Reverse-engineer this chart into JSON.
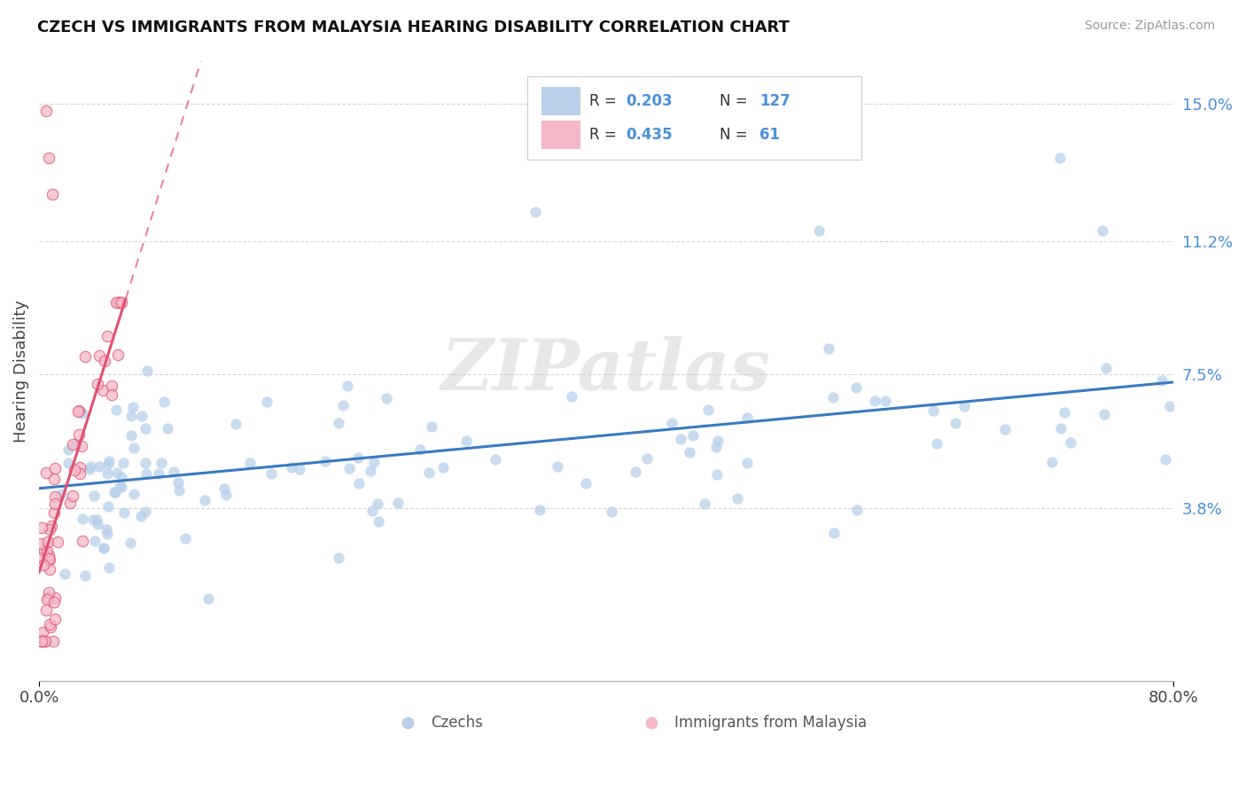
{
  "title": "CZECH VS IMMIGRANTS FROM MALAYSIA HEARING DISABILITY CORRELATION CHART",
  "source": "Source: ZipAtlas.com",
  "ylabel": "Hearing Disability",
  "y_ticks": [
    0.038,
    0.075,
    0.112,
    0.15
  ],
  "y_tick_labels": [
    "3.8%",
    "7.5%",
    "11.2%",
    "15.0%"
  ],
  "x_min": 0.0,
  "x_max": 0.8,
  "y_min": -0.01,
  "y_max": 0.162,
  "czech_color": "#b8d0ea",
  "malaysia_color": "#f5b8c8",
  "trend_czech_color": "#3a7abf",
  "trend_malaysia_color": "#e05070",
  "watermark_text": "ZIPatlas",
  "legend_R_czech": "0.203",
  "legend_N_czech": "127",
  "legend_R_malaysia": "0.435",
  "legend_N_malaysia": "61",
  "grid_color": "#cccccc",
  "background_color": "#ffffff",
  "right_axis_tick_color": "#4a90d9",
  "legend_text_color": "#4a90d9",
  "legend_label_color": "#333333"
}
